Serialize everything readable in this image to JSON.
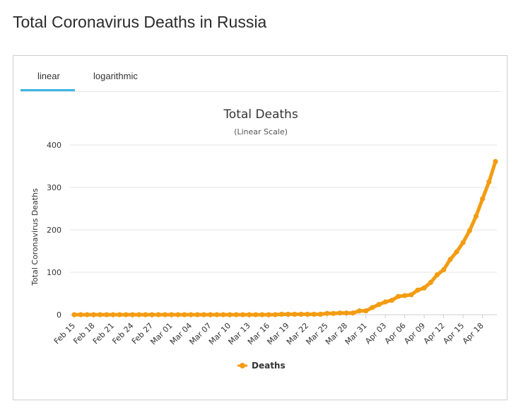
{
  "page": {
    "title": "Total Coronavirus Deaths in Russia"
  },
  "tabs": [
    {
      "label": "linear",
      "active": true
    },
    {
      "label": "logarithmic",
      "active": false
    }
  ],
  "colors": {
    "series": "#f39c12",
    "tab_accent": "#3fb6e5",
    "grid": "#e6e6e6"
  },
  "chart_data": {
    "type": "line",
    "title": "Total Deaths",
    "subtitle": "(Linear Scale)",
    "xlabel": "",
    "ylabel": "Total Coronavirus Deaths",
    "ylim": [
      0,
      400
    ],
    "yticks": [
      0,
      100,
      200,
      300,
      400
    ],
    "grid": true,
    "legend_position": "bottom-center",
    "x": [
      "Feb 15",
      "Feb 16",
      "Feb 17",
      "Feb 18",
      "Feb 19",
      "Feb 20",
      "Feb 21",
      "Feb 22",
      "Feb 23",
      "Feb 24",
      "Feb 25",
      "Feb 26",
      "Feb 27",
      "Feb 28",
      "Feb 29",
      "Mar 01",
      "Mar 02",
      "Mar 03",
      "Mar 04",
      "Mar 05",
      "Mar 06",
      "Mar 07",
      "Mar 08",
      "Mar 09",
      "Mar 10",
      "Mar 11",
      "Mar 12",
      "Mar 13",
      "Mar 14",
      "Mar 15",
      "Mar 16",
      "Mar 17",
      "Mar 18",
      "Mar 19",
      "Mar 20",
      "Mar 21",
      "Mar 22",
      "Mar 23",
      "Mar 24",
      "Mar 25",
      "Mar 26",
      "Mar 27",
      "Mar 28",
      "Mar 29",
      "Mar 30",
      "Mar 31",
      "Apr 01",
      "Apr 02",
      "Apr 03",
      "Apr 04",
      "Apr 05",
      "Apr 06",
      "Apr 07",
      "Apr 08",
      "Apr 09",
      "Apr 10",
      "Apr 11",
      "Apr 12",
      "Apr 13",
      "Apr 14",
      "Apr 15",
      "Apr 16",
      "Apr 17",
      "Apr 18",
      "Apr 19",
      "Apr 20"
    ],
    "x_tick_labels": [
      "Feb 15",
      "Feb 18",
      "Feb 21",
      "Feb 24",
      "Feb 27",
      "Mar 01",
      "Mar 04",
      "Mar 07",
      "Mar 10",
      "Mar 13",
      "Mar 16",
      "Mar 19",
      "Mar 22",
      "Mar 25",
      "Mar 28",
      "Mar 31",
      "Apr 03",
      "Apr 06",
      "Apr 09",
      "Apr 12",
      "Apr 15",
      "Apr 18"
    ],
    "series": [
      {
        "name": "Deaths",
        "values": [
          0,
          0,
          0,
          0,
          0,
          0,
          0,
          0,
          0,
          0,
          0,
          0,
          0,
          0,
          0,
          0,
          0,
          0,
          0,
          0,
          0,
          0,
          0,
          0,
          0,
          0,
          0,
          0,
          0,
          0,
          0,
          0,
          1,
          1,
          1,
          1,
          1,
          1,
          1,
          3,
          3,
          4,
          4,
          4,
          9,
          9,
          17,
          24,
          30,
          34,
          43,
          45,
          47,
          58,
          63,
          76,
          94,
          106,
          130,
          148,
          170,
          198,
          232,
          273,
          313,
          361
        ]
      }
    ]
  }
}
